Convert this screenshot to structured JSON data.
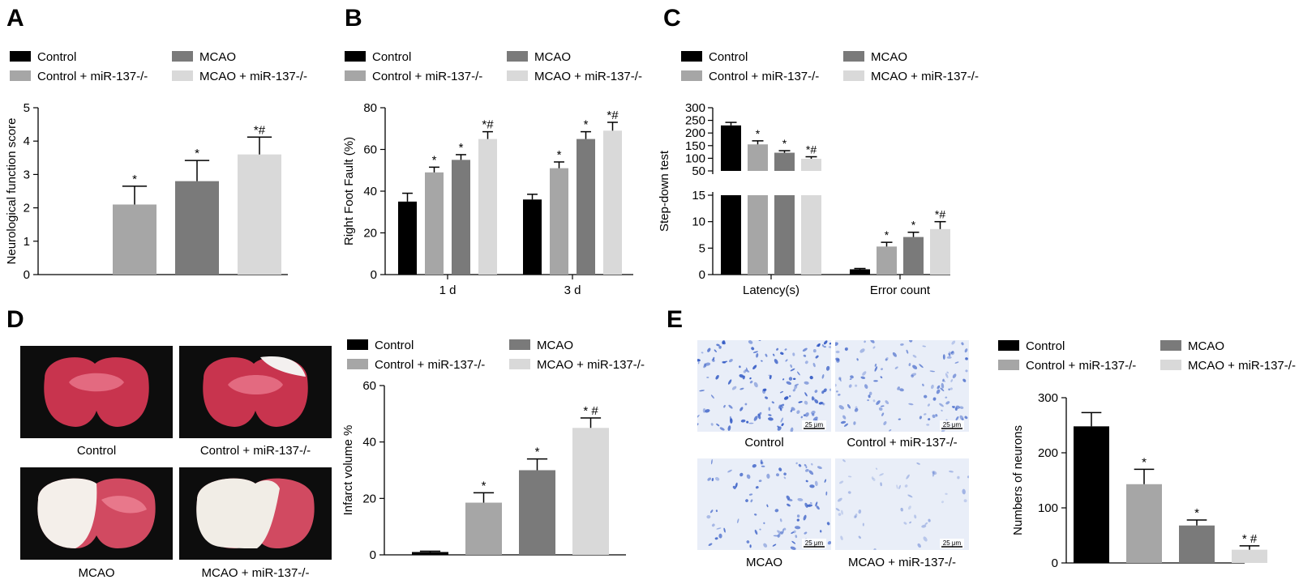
{
  "colors": {
    "control": "#000000",
    "control_mir": "#a6a6a6",
    "mcao": "#7a7a7a",
    "mcao_mir": "#d9d9d9"
  },
  "legend": [
    "Control",
    "MCAO",
    "Control + miR-137-/-",
    "MCAO + miR-137-/-"
  ],
  "panels": {
    "A": "A",
    "B": "B",
    "C": "C",
    "D": "D",
    "E": "E"
  },
  "captions": {
    "D": [
      "Control",
      "Control + miR-137-/-",
      "MCAO",
      "MCAO + miR-137-/-"
    ],
    "E": [
      "Control",
      "Control + miR-137-/-",
      "MCAO",
      "MCAO + miR-137-/-"
    ]
  },
  "scale_bar": "25 μm",
  "chart_data": [
    {
      "panel": "A",
      "type": "bar",
      "ylabel": "Neurological function score",
      "ylim": [
        0,
        5
      ],
      "yticks": [
        0,
        1,
        2,
        3,
        4,
        5
      ],
      "categories": [
        ""
      ],
      "series": [
        {
          "name": "Control",
          "values": [
            0
          ],
          "errors": [
            0
          ],
          "marks": [
            ""
          ]
        },
        {
          "name": "Control + miR-137-/-",
          "values": [
            2.1
          ],
          "errors": [
            0.55
          ],
          "marks": [
            "*"
          ]
        },
        {
          "name": "MCAO",
          "values": [
            2.8
          ],
          "errors": [
            0.62
          ],
          "marks": [
            "*"
          ]
        },
        {
          "name": "MCAO + miR-137-/-",
          "values": [
            3.6
          ],
          "errors": [
            0.52
          ],
          "marks": [
            "*#"
          ]
        }
      ]
    },
    {
      "panel": "B",
      "type": "bar",
      "ylabel": "Right Foot Fault (%)",
      "ylim": [
        0,
        80
      ],
      "yticks": [
        0,
        20,
        40,
        60,
        80
      ],
      "categories": [
        "1 d",
        "3 d"
      ],
      "series": [
        {
          "name": "Control",
          "values": [
            35,
            36
          ],
          "errors": [
            4,
            2.5
          ],
          "marks": [
            "",
            ""
          ]
        },
        {
          "name": "Control + miR-137-/-",
          "values": [
            49,
            51
          ],
          "errors": [
            2.5,
            3
          ],
          "marks": [
            "*",
            "*"
          ]
        },
        {
          "name": "MCAO",
          "values": [
            55,
            65
          ],
          "errors": [
            2.5,
            3.5
          ],
          "marks": [
            "*",
            "*"
          ]
        },
        {
          "name": "MCAO + miR-137-/-",
          "values": [
            65,
            69
          ],
          "errors": [
            3.5,
            4
          ],
          "marks": [
            "*#",
            "*#"
          ]
        }
      ]
    },
    {
      "panel": "C",
      "type": "bar",
      "ylabel": "Step-down test",
      "broken_axis": {
        "lower": [
          0,
          15
        ],
        "upper": [
          50,
          300
        ]
      },
      "yticks_lower": [
        0,
        5,
        10,
        15
      ],
      "yticks_upper": [
        50,
        100,
        150,
        200,
        250,
        300
      ],
      "categories": [
        "Latency(s)",
        "Error count"
      ],
      "series": [
        {
          "name": "Control",
          "values": [
            230,
            1
          ],
          "errors": [
            12,
            0.15
          ],
          "marks": [
            "",
            ""
          ]
        },
        {
          "name": "Control + miR-137-/-",
          "values": [
            155,
            5.3
          ],
          "errors": [
            14,
            0.8
          ],
          "marks": [
            "*",
            "*"
          ]
        },
        {
          "name": "MCAO",
          "values": [
            122,
            7.1
          ],
          "errors": [
            8,
            0.9
          ],
          "marks": [
            "*",
            "*"
          ]
        },
        {
          "name": "MCAO + miR-137-/-",
          "values": [
            98,
            8.6
          ],
          "errors": [
            8,
            1.4
          ],
          "marks": [
            "*#",
            "*#"
          ]
        }
      ]
    },
    {
      "panel": "D",
      "type": "bar",
      "ylabel": "Infarct volume %",
      "ylim": [
        0,
        60
      ],
      "yticks": [
        0,
        20,
        40,
        60
      ],
      "categories": [
        ""
      ],
      "series": [
        {
          "name": "Control",
          "values": [
            1
          ],
          "errors": [
            0.3
          ],
          "marks": [
            ""
          ]
        },
        {
          "name": "Control + miR-137-/-",
          "values": [
            18.5
          ],
          "errors": [
            3.5
          ],
          "marks": [
            "*"
          ]
        },
        {
          "name": "MCAO",
          "values": [
            30
          ],
          "errors": [
            4
          ],
          "marks": [
            "*"
          ]
        },
        {
          "name": "MCAO + miR-137-/-",
          "values": [
            45
          ],
          "errors": [
            3.5
          ],
          "marks": [
            "* #"
          ]
        }
      ]
    },
    {
      "panel": "E",
      "type": "bar",
      "ylabel": "Numbers of neurons",
      "ylim": [
        0,
        300
      ],
      "yticks": [
        0,
        100,
        200,
        300
      ],
      "categories": [
        ""
      ],
      "series": [
        {
          "name": "Control",
          "values": [
            248
          ],
          "errors": [
            25
          ],
          "marks": [
            ""
          ]
        },
        {
          "name": "Control + miR-137-/-",
          "values": [
            143
          ],
          "errors": [
            27
          ],
          "marks": [
            "*"
          ]
        },
        {
          "name": "MCAO",
          "values": [
            68
          ],
          "errors": [
            10
          ],
          "marks": [
            "*"
          ]
        },
        {
          "name": "MCAO + miR-137-/-",
          "values": [
            24
          ],
          "errors": [
            7
          ],
          "marks": [
            "* #"
          ]
        }
      ]
    }
  ]
}
